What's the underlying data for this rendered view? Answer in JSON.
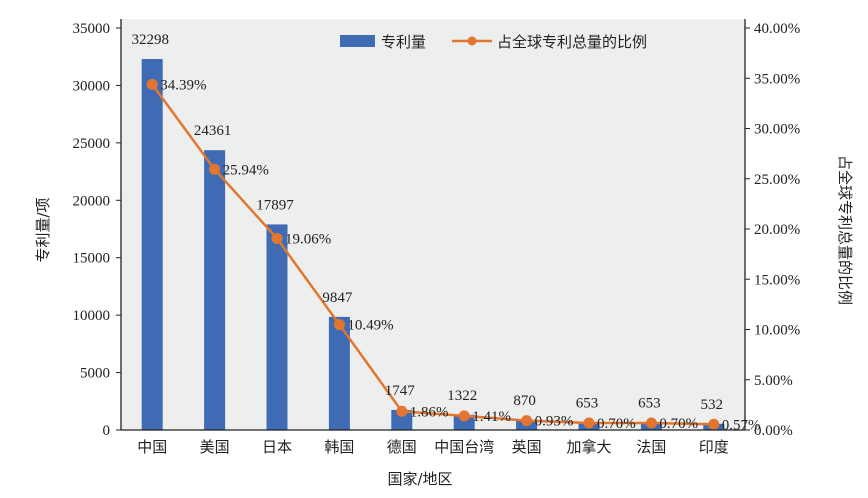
{
  "chart_data": {
    "type": "bar+line",
    "categories": [
      "中国",
      "美国",
      "日本",
      "韩国",
      "德国",
      "中国台湾",
      "英国",
      "加拿大",
      "法国",
      "印度"
    ],
    "series": [
      {
        "name": "专利量",
        "type": "bar",
        "axis": "left",
        "color": "#3f6bb5",
        "values": [
          32298,
          24361,
          17897,
          9847,
          1747,
          1322,
          870,
          653,
          653,
          532
        ],
        "labels": [
          "32298",
          "24361",
          "17897",
          "9847",
          "1747",
          "1322",
          "870",
          "653",
          "653",
          "532"
        ]
      },
      {
        "name": "占全球专利总量的比例",
        "type": "line",
        "axis": "right",
        "color": "#e2762f",
        "values": [
          34.39,
          25.94,
          19.06,
          10.49,
          1.86,
          1.41,
          0.93,
          0.7,
          0.7,
          0.57
        ],
        "labels": [
          "34.39%",
          "25.94%",
          "19.06%",
          "10.49%",
          "1.86%",
          "1.41%",
          "0.93%",
          "0.70%",
          "0.70%",
          "0.57%"
        ]
      }
    ],
    "xlabel": "国家/地区",
    "ylabel": "专利量/项",
    "y2label": "占全球专利总量的比例",
    "ylim": [
      0,
      35000
    ],
    "yticks": [
      "0",
      "5000",
      "10000",
      "15000",
      "20000",
      "25000",
      "30000",
      "35000"
    ],
    "y2lim": [
      0,
      40
    ],
    "y2ticks": [
      "0.00%",
      "5.00%",
      "10.00%",
      "15.00%",
      "20.00%",
      "25.00%",
      "30.00%",
      "35.00%",
      "40.00%"
    ],
    "legend": "top-right",
    "background": "#edeeee"
  }
}
